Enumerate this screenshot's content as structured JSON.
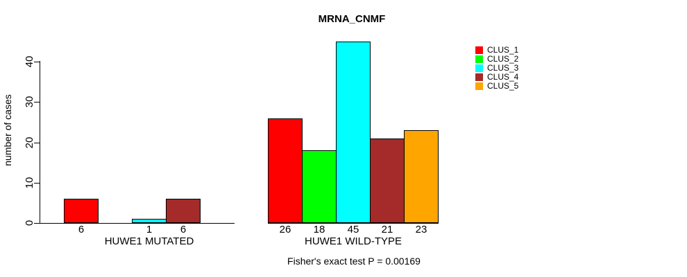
{
  "chart_data": {
    "type": "bar",
    "title": "MRNA_CNMF",
    "ylabel": "number of cases",
    "xlabel": "",
    "ylim": [
      0,
      45
    ],
    "yticks": [
      0,
      10,
      20,
      30,
      40
    ],
    "grid": false,
    "legend_position": "right",
    "categories": [
      "HUWE1 MUTATED",
      "HUWE1 WILD-TYPE"
    ],
    "series": [
      {
        "name": "CLUS_1",
        "color": "#ff0000",
        "values": [
          6,
          26
        ]
      },
      {
        "name": "CLUS_2",
        "color": "#00ff00",
        "values": [
          0,
          18
        ]
      },
      {
        "name": "CLUS_3",
        "color": "#00ffff",
        "values": [
          1,
          45
        ]
      },
      {
        "name": "CLUS_4",
        "color": "#a52a2a",
        "values": [
          6,
          21
        ]
      },
      {
        "name": "CLUS_5",
        "color": "#ffa500",
        "values": [
          0,
          23
        ]
      }
    ],
    "bar_value_labels": {
      "HUWE1 MUTATED": [
        6,
        null,
        1,
        6,
        null
      ],
      "HUWE1 WILD-TYPE": [
        26,
        18,
        45,
        21,
        23
      ]
    },
    "annotation": "Fisher's exact test P = 0.00169",
    "colors": {
      "axis": "#000000",
      "bar_border": "#000000",
      "text": "#000000",
      "background": "#ffffff"
    }
  }
}
